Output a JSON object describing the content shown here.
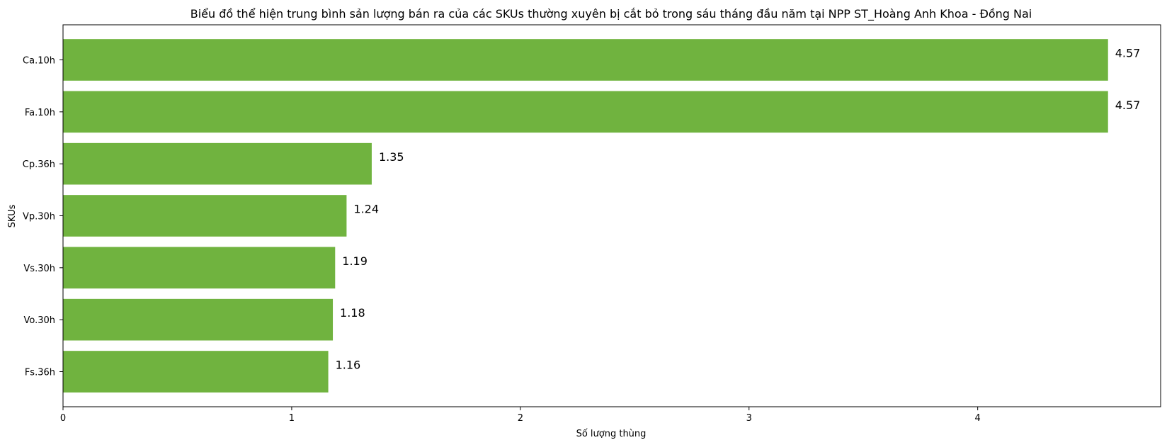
{
  "chart_data": {
    "type": "bar",
    "orientation": "horizontal",
    "title": "Biểu đồ thể hiện trung bình sản lượng bán ra của các SKUs thường xuyên bị cắt bỏ trong sáu tháng đầu năm tại NPP ST_Hoàng Anh Khoa - Đồng Nai",
    "xlabel": "Số lượng thùng",
    "ylabel": "SKUs",
    "categories": [
      "Ca.10h",
      "Fa.10h",
      "Cp.36h",
      "Vp.30h",
      "Vs.30h",
      "Vo.30h",
      "Fs.36h"
    ],
    "values": [
      4.57,
      4.57,
      1.35,
      1.24,
      1.19,
      1.18,
      1.16
    ],
    "value_labels": [
      "4.57",
      "4.57",
      "1.35",
      "1.24",
      "1.19",
      "1.18",
      "1.16"
    ],
    "xticks": [
      0,
      1,
      2,
      3,
      4
    ],
    "xticklabels": [
      "0",
      "1",
      "2",
      "3",
      "4"
    ],
    "xlim": [
      0,
      4.8
    ],
    "bar_color": "#70b33f",
    "grid": false,
    "legend": "none"
  }
}
